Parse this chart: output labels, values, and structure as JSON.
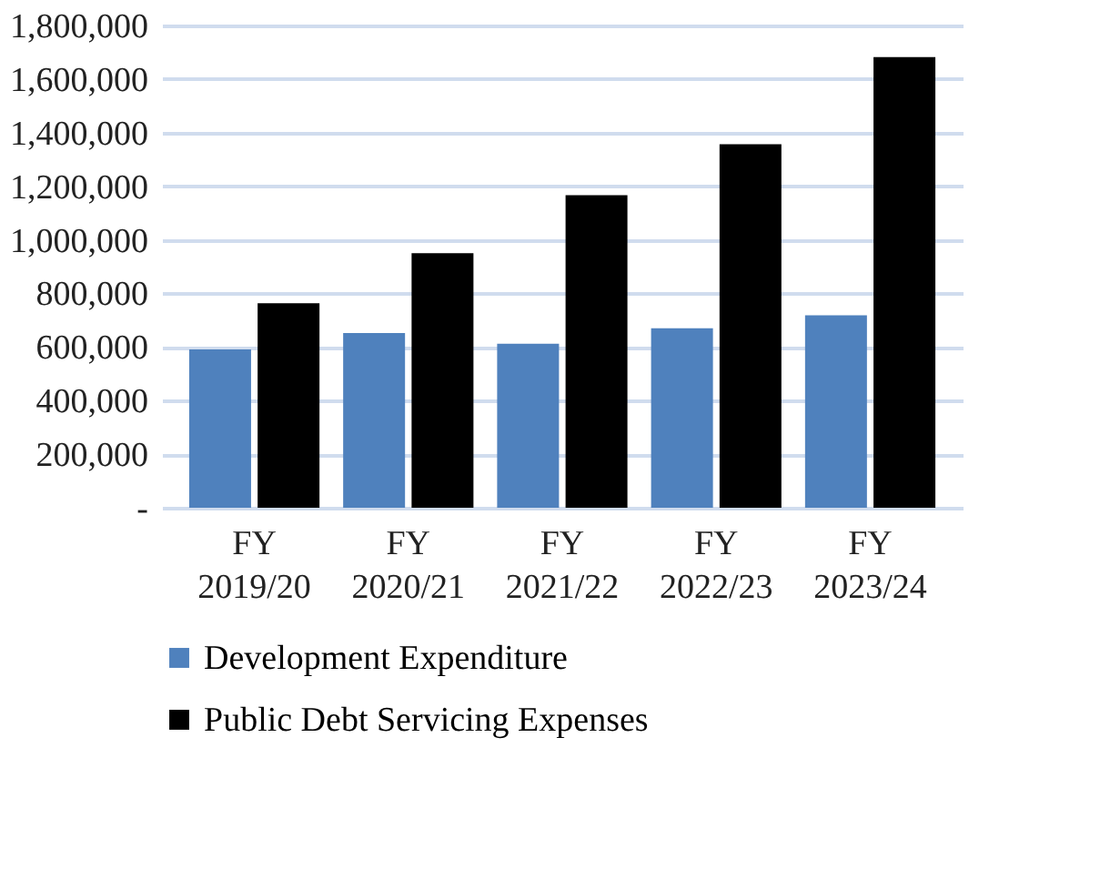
{
  "chart_data": {
    "type": "bar",
    "categories": [
      "FY 2019/20",
      "FY 2020/21",
      "FY 2021/22",
      "FY 2022/23",
      "FY 2023/24"
    ],
    "series": [
      {
        "name": "Development Expenditure",
        "color": "#4f81bd",
        "values": [
          591000,
          652000,
          612000,
          670000,
          718000
        ]
      },
      {
        "name": "Public Debt Servicing Expenses",
        "color": "#000000",
        "values": [
          763000,
          950000,
          1167000,
          1357000,
          1682000
        ]
      }
    ],
    "ylim": [
      0,
      1800000
    ],
    "yticks": [
      {
        "value": 0,
        "label": "-"
      },
      {
        "value": 200000,
        "label": "200,000"
      },
      {
        "value": 400000,
        "label": "400,000"
      },
      {
        "value": 600000,
        "label": "600,000"
      },
      {
        "value": 800000,
        "label": "800,000"
      },
      {
        "value": 1000000,
        "label": "1,000,000"
      },
      {
        "value": 1200000,
        "label": "1,200,000"
      },
      {
        "value": 1400000,
        "label": "1,400,000"
      },
      {
        "value": 1600000,
        "label": "1,600,000"
      },
      {
        "value": 1800000,
        "label": "1,800,000"
      }
    ],
    "grid": "y",
    "legend": "bottom"
  }
}
